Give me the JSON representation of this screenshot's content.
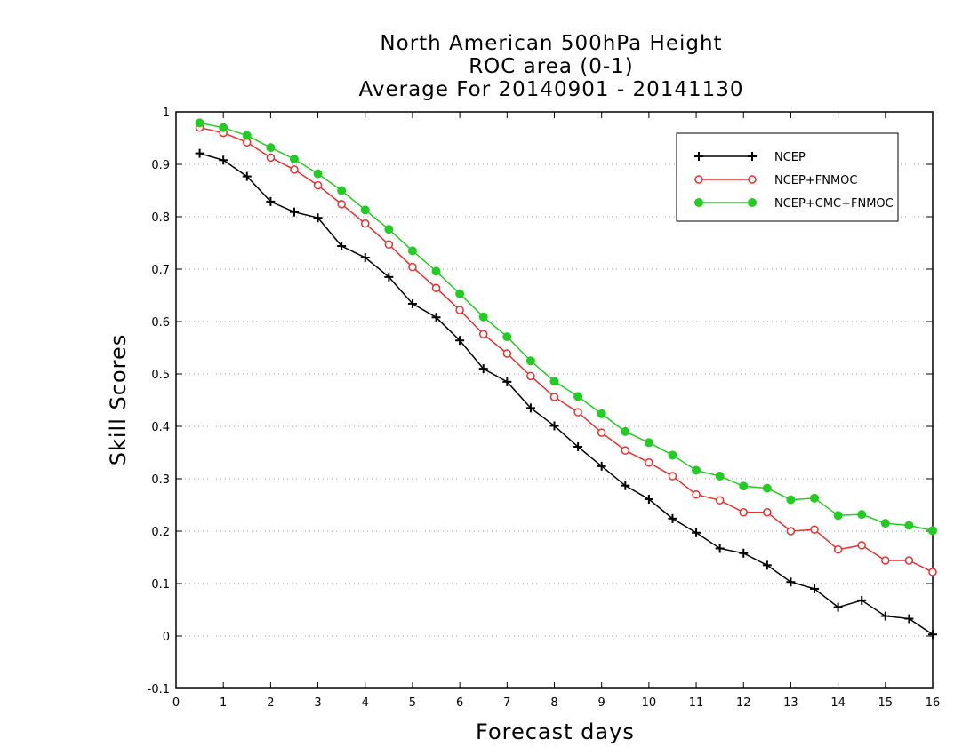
{
  "chart_data": {
    "type": "line",
    "title": [
      "North American 500hPa Height",
      "ROC area (0-1)",
      "Average For 20140901 - 20141130"
    ],
    "xlabel": "Forecast days",
    "ylabel": "Skill Scores",
    "xlim": [
      0,
      16
    ],
    "ylim": [
      -0.1,
      1
    ],
    "xticks": [
      "0",
      "1",
      "2",
      "3",
      "4",
      "5",
      "6",
      "7",
      "8",
      "9",
      "10",
      "11",
      "12",
      "13",
      "14",
      "15",
      "16"
    ],
    "yticks": [
      "-0.1",
      "0",
      "0.1",
      "0.2",
      "0.3",
      "0.4",
      "0.5",
      "0.6",
      "0.7",
      "0.8",
      "0.9",
      "1"
    ],
    "grid": "horizontal dotted",
    "legend_position": "top-right",
    "x": [
      0.5,
      1,
      1.5,
      2,
      2.5,
      3,
      3.5,
      4,
      4.5,
      5,
      5.5,
      6,
      6.5,
      7,
      7.5,
      8,
      8.5,
      9,
      9.5,
      10,
      10.5,
      11,
      11.5,
      12,
      12.5,
      13,
      13.5,
      14,
      14.5,
      15,
      15.5,
      16
    ],
    "series": [
      {
        "name": "NCEP",
        "color": "#000000",
        "marker": "plus",
        "values": [
          0.921,
          0.908,
          0.877,
          0.829,
          0.809,
          0.798,
          0.744,
          0.722,
          0.685,
          0.634,
          0.608,
          0.564,
          0.51,
          0.485,
          0.435,
          0.401,
          0.361,
          0.324,
          0.287,
          0.261,
          0.224,
          0.197,
          0.167,
          0.158,
          0.135,
          0.103,
          0.09,
          0.055,
          0.068,
          0.038,
          0.033,
          0.003
        ]
      },
      {
        "name": "NCEP+FNMOC",
        "color": "#e8302e",
        "marker": "open-circle",
        "values": [
          0.97,
          0.96,
          0.942,
          0.913,
          0.89,
          0.86,
          0.824,
          0.787,
          0.747,
          0.704,
          0.664,
          0.622,
          0.576,
          0.539,
          0.496,
          0.456,
          0.427,
          0.388,
          0.354,
          0.331,
          0.305,
          0.27,
          0.259,
          0.236,
          0.236,
          0.2,
          0.203,
          0.165,
          0.173,
          0.144,
          0.144,
          0.122
        ]
      },
      {
        "name": "NCEP+CMC+FNMOC",
        "color": "#22cc22",
        "marker": "filled-circle",
        "values": [
          0.979,
          0.97,
          0.955,
          0.932,
          0.91,
          0.882,
          0.85,
          0.813,
          0.776,
          0.735,
          0.696,
          0.653,
          0.609,
          0.571,
          0.525,
          0.486,
          0.457,
          0.424,
          0.39,
          0.369,
          0.345,
          0.316,
          0.305,
          0.286,
          0.282,
          0.26,
          0.263,
          0.23,
          0.232,
          0.215,
          0.211,
          0.201
        ]
      }
    ]
  }
}
